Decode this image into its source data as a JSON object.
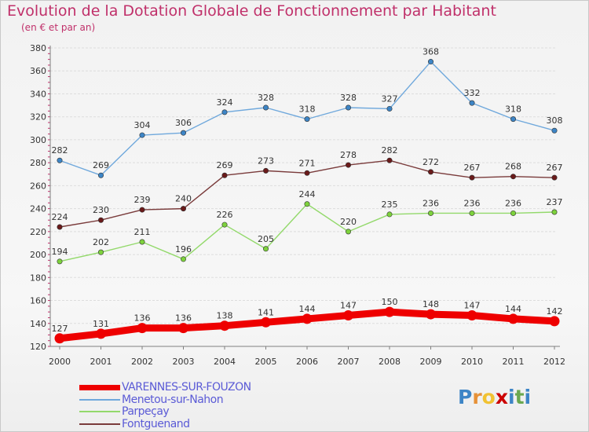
{
  "title": "Evolution de la Dotation Globale de Fonctionnement par Habitant",
  "subtitle": "(en € et par an)",
  "colors": {
    "title": "#c0306a",
    "legend_text": "#5b5bd6",
    "axis": "#7f7f7f",
    "tick_mark": "#c0306a",
    "grid": "#dddddd",
    "data_label": "#333333"
  },
  "chart_data": {
    "type": "line",
    "x": [
      "2000",
      "2001",
      "2002",
      "2003",
      "2004",
      "2005",
      "2006",
      "2007",
      "2008",
      "2009",
      "2010",
      "2011",
      "2012"
    ],
    "ylim": [
      120,
      380
    ],
    "yticks": [
      120,
      140,
      160,
      180,
      200,
      220,
      240,
      260,
      280,
      300,
      320,
      340,
      360,
      380
    ],
    "grid": true,
    "legend_position": "bottom-left",
    "series": [
      {
        "name": "VARENNES-SUR-FOUZON",
        "color": "#ee0000",
        "marker_color": "#ee0000",
        "values": [
          127,
          131,
          136,
          136,
          138,
          141,
          144,
          147,
          150,
          148,
          147,
          144,
          142
        ]
      },
      {
        "name": "Menetou-sur-Nahon",
        "color": "#6fa8dc",
        "marker_color": "#3d85c6",
        "values": [
          282,
          269,
          304,
          306,
          324,
          328,
          318,
          328,
          327,
          368,
          332,
          318,
          308
        ]
      },
      {
        "name": "Parpeçay",
        "color": "#93d96b",
        "marker_color": "#7dd23c",
        "values": [
          194,
          202,
          211,
          196,
          226,
          205,
          244,
          220,
          235,
          236,
          236,
          236,
          237
        ]
      },
      {
        "name": "Fontguenand",
        "color": "#7a3b3b",
        "marker_color": "#6a1a1a",
        "values": [
          224,
          230,
          239,
          240,
          269,
          273,
          271,
          278,
          282,
          272,
          267,
          268,
          267
        ]
      }
    ]
  },
  "logo": {
    "text": "Proxiti",
    "letter_colors": [
      "#3d85c6",
      "#e69138",
      "#f1c232",
      "#cc0000",
      "#3d85c6",
      "#6aa84f",
      "#3d85c6"
    ]
  }
}
